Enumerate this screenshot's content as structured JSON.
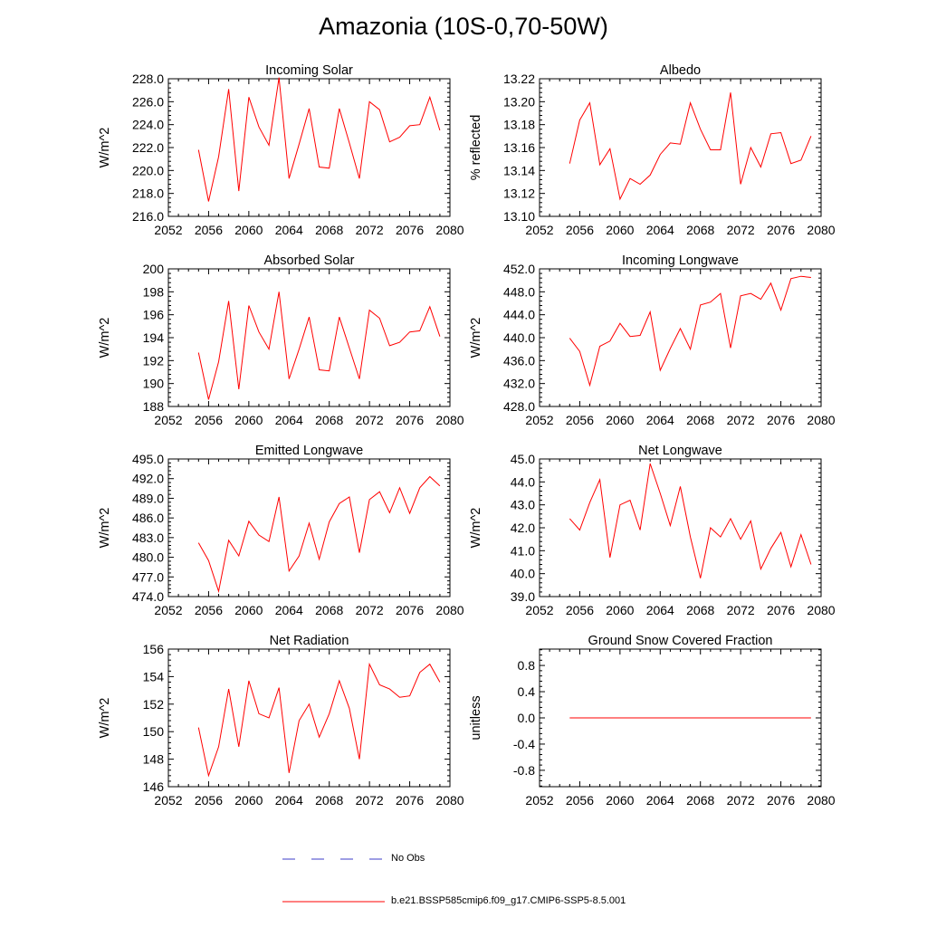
{
  "title": "Amazonia (10S-0,70-50W)",
  "colors": {
    "model_line": "#ff0000",
    "obs_line": "#3c3cc8",
    "frame": "#000000"
  },
  "legend": {
    "obs_label": "No Obs",
    "model_label": "b.e21.BSSP585cmip6.f09_g17.CMIP6-SSP5-8.5.001"
  },
  "chart_data": [
    {
      "type": "line",
      "title": "Incoming Solar",
      "ylabel": "W/m^2",
      "xlim": [
        2052,
        2080
      ],
      "ylim": [
        216,
        228
      ],
      "xticks": [
        2052,
        2056,
        2060,
        2064,
        2068,
        2072,
        2076,
        2080
      ],
      "xtick_labels": [
        "2052",
        "2056",
        "2060",
        "2064",
        "2068",
        "2072",
        "2076",
        "2080"
      ],
      "yticks": [
        216,
        218,
        220,
        222,
        224,
        226,
        228
      ],
      "ytick_labels": [
        "216.0",
        "218.0",
        "220.0",
        "222.0",
        "224.0",
        "226.0",
        "228.0"
      ],
      "x": [
        2055,
        2056,
        2057,
        2058,
        2059,
        2060,
        2061,
        2062,
        2063,
        2064,
        2065,
        2066,
        2067,
        2068,
        2069,
        2070,
        2071,
        2072,
        2073,
        2074,
        2075,
        2076,
        2077,
        2078,
        2079
      ],
      "values": [
        221.8,
        217.3,
        221.2,
        227.1,
        218.2,
        226.4,
        223.8,
        222.2,
        228.1,
        219.3,
        222.3,
        225.4,
        220.3,
        220.2,
        225.4,
        222.4,
        219.3,
        226.0,
        225.3,
        222.5,
        222.9,
        223.9,
        224.0,
        226.4,
        223.5
      ]
    },
    {
      "type": "line",
      "title": "Albedo",
      "ylabel": "% reflected",
      "xlim": [
        2052,
        2080
      ],
      "ylim": [
        13.1,
        13.22
      ],
      "xticks": [
        2052,
        2056,
        2060,
        2064,
        2068,
        2072,
        2076,
        2080
      ],
      "xtick_labels": [
        "2052",
        "2056",
        "2060",
        "2064",
        "2068",
        "2072",
        "2076",
        "2080"
      ],
      "yticks": [
        13.1,
        13.12,
        13.14,
        13.16,
        13.18,
        13.2,
        13.22
      ],
      "ytick_labels": [
        "13.10",
        "13.12",
        "13.14",
        "13.16",
        "13.18",
        "13.20",
        "13.22"
      ],
      "x": [
        2055,
        2056,
        2057,
        2058,
        2059,
        2060,
        2061,
        2062,
        2063,
        2064,
        2065,
        2066,
        2067,
        2068,
        2069,
        2070,
        2071,
        2072,
        2073,
        2074,
        2075,
        2076,
        2077,
        2078,
        2079
      ],
      "values": [
        13.146,
        13.184,
        13.199,
        13.145,
        13.159,
        13.115,
        13.133,
        13.128,
        13.136,
        13.154,
        13.164,
        13.163,
        13.199,
        13.176,
        13.158,
        13.158,
        13.208,
        13.128,
        13.16,
        13.143,
        13.172,
        13.173,
        13.146,
        13.149,
        13.17
      ]
    },
    {
      "type": "line",
      "title": "Absorbed Solar",
      "ylabel": "W/m^2",
      "xlim": [
        2052,
        2080
      ],
      "ylim": [
        188,
        200
      ],
      "xticks": [
        2052,
        2056,
        2060,
        2064,
        2068,
        2072,
        2076,
        2080
      ],
      "xtick_labels": [
        "2052",
        "2056",
        "2060",
        "2064",
        "2068",
        "2072",
        "2076",
        "2080"
      ],
      "yticks": [
        188,
        190,
        192,
        194,
        196,
        198,
        200
      ],
      "ytick_labels": [
        "188",
        "190",
        "192",
        "194",
        "196",
        "198",
        "200"
      ],
      "x": [
        2055,
        2056,
        2057,
        2058,
        2059,
        2060,
        2061,
        2062,
        2063,
        2064,
        2065,
        2066,
        2067,
        2068,
        2069,
        2070,
        2071,
        2072,
        2073,
        2074,
        2075,
        2076,
        2077,
        2078,
        2079
      ],
      "values": [
        192.7,
        188.6,
        191.9,
        197.2,
        189.5,
        196.8,
        194.5,
        193.0,
        198.0,
        190.4,
        193.0,
        195.8,
        191.2,
        191.1,
        195.8,
        193.1,
        190.4,
        196.4,
        195.7,
        193.3,
        193.6,
        194.5,
        194.6,
        196.7,
        194.1
      ]
    },
    {
      "type": "line",
      "title": "Incoming Longwave",
      "ylabel": "W/m^2",
      "xlim": [
        2052,
        2080
      ],
      "ylim": [
        428,
        452
      ],
      "xticks": [
        2052,
        2056,
        2060,
        2064,
        2068,
        2072,
        2076,
        2080
      ],
      "xtick_labels": [
        "2052",
        "2056",
        "2060",
        "2064",
        "2068",
        "2072",
        "2076",
        "2080"
      ],
      "yticks": [
        428,
        432,
        436,
        440,
        444,
        448,
        452
      ],
      "ytick_labels": [
        "428.0",
        "432.0",
        "436.0",
        "440.0",
        "444.0",
        "448.0",
        "452.0"
      ],
      "x": [
        2055,
        2056,
        2057,
        2058,
        2059,
        2060,
        2061,
        2062,
        2063,
        2064,
        2065,
        2066,
        2067,
        2068,
        2069,
        2070,
        2071,
        2072,
        2073,
        2074,
        2075,
        2076,
        2077,
        2078,
        2079
      ],
      "values": [
        439.9,
        437.6,
        431.7,
        438.5,
        439.4,
        442.5,
        440.2,
        440.4,
        444.5,
        434.3,
        438.1,
        441.6,
        438.0,
        445.7,
        446.2,
        447.7,
        438.2,
        447.3,
        447.7,
        446.7,
        449.5,
        444.8,
        450.3,
        450.7,
        450.5
      ]
    },
    {
      "type": "line",
      "title": "Emitted Longwave",
      "ylabel": "W/m^2",
      "xlim": [
        2052,
        2080
      ],
      "ylim": [
        474,
        495
      ],
      "xticks": [
        2052,
        2056,
        2060,
        2064,
        2068,
        2072,
        2076,
        2080
      ],
      "xtick_labels": [
        "2052",
        "2056",
        "2060",
        "2064",
        "2068",
        "2072",
        "2076",
        "2080"
      ],
      "yticks": [
        474,
        477,
        480,
        483,
        486,
        489,
        492,
        495
      ],
      "ytick_labels": [
        "474.0",
        "477.0",
        "480.0",
        "483.0",
        "486.0",
        "489.0",
        "492.0",
        "495.0"
      ],
      "x": [
        2055,
        2056,
        2057,
        2058,
        2059,
        2060,
        2061,
        2062,
        2063,
        2064,
        2065,
        2066,
        2067,
        2068,
        2069,
        2070,
        2071,
        2072,
        2073,
        2074,
        2075,
        2076,
        2077,
        2078,
        2079
      ],
      "values": [
        482.2,
        479.5,
        474.8,
        482.6,
        480.2,
        485.5,
        483.4,
        482.4,
        489.2,
        477.9,
        480.2,
        485.2,
        479.7,
        485.4,
        488.2,
        489.2,
        480.7,
        488.8,
        490.0,
        486.8,
        490.6,
        486.7,
        490.6,
        492.3,
        490.9
      ]
    },
    {
      "type": "line",
      "title": "Net Longwave",
      "ylabel": "W/m^2",
      "xlim": [
        2052,
        2080
      ],
      "ylim": [
        39,
        45
      ],
      "xticks": [
        2052,
        2056,
        2060,
        2064,
        2068,
        2072,
        2076,
        2080
      ],
      "xtick_labels": [
        "2052",
        "2056",
        "2060",
        "2064",
        "2068",
        "2072",
        "2076",
        "2080"
      ],
      "yticks": [
        39,
        40,
        41,
        42,
        43,
        44,
        45
      ],
      "ytick_labels": [
        "39.0",
        "40.0",
        "41.0",
        "42.0",
        "43.0",
        "44.0",
        "45.0"
      ],
      "x": [
        2055,
        2056,
        2057,
        2058,
        2059,
        2060,
        2061,
        2062,
        2063,
        2064,
        2065,
        2066,
        2067,
        2068,
        2069,
        2070,
        2071,
        2072,
        2073,
        2074,
        2075,
        2076,
        2077,
        2078,
        2079
      ],
      "values": [
        42.4,
        41.9,
        43.1,
        44.1,
        40.7,
        43.0,
        43.2,
        41.9,
        44.8,
        43.5,
        42.1,
        43.8,
        41.6,
        39.8,
        42.0,
        41.6,
        42.4,
        41.5,
        42.3,
        40.2,
        41.1,
        41.8,
        40.3,
        41.7,
        40.4
      ]
    },
    {
      "type": "line",
      "title": "Net Radiation",
      "ylabel": "W/m^2",
      "xlim": [
        2052,
        2080
      ],
      "ylim": [
        146,
        156
      ],
      "xticks": [
        2052,
        2056,
        2060,
        2064,
        2068,
        2072,
        2076,
        2080
      ],
      "xtick_labels": [
        "2052",
        "2056",
        "2060",
        "2064",
        "2068",
        "2072",
        "2076",
        "2080"
      ],
      "yticks": [
        146,
        148,
        150,
        152,
        154,
        156
      ],
      "ytick_labels": [
        "146",
        "148",
        "150",
        "152",
        "154",
        "156"
      ],
      "x": [
        2055,
        2056,
        2057,
        2058,
        2059,
        2060,
        2061,
        2062,
        2063,
        2064,
        2065,
        2066,
        2067,
        2068,
        2069,
        2070,
        2071,
        2072,
        2073,
        2074,
        2075,
        2076,
        2077,
        2078,
        2079
      ],
      "values": [
        150.3,
        146.8,
        148.9,
        153.1,
        148.9,
        153.7,
        151.3,
        151.0,
        153.2,
        147.0,
        150.8,
        152.0,
        149.6,
        151.3,
        153.7,
        151.7,
        148.0,
        154.9,
        153.4,
        153.1,
        152.5,
        152.6,
        154.3,
        154.9,
        153.6
      ]
    },
    {
      "type": "line",
      "title": "Ground Snow Covered Fraction",
      "ylabel": "unitless",
      "xlim": [
        2052,
        2080
      ],
      "ylim": [
        -1.05,
        1.05
      ],
      "xticks": [
        2052,
        2056,
        2060,
        2064,
        2068,
        2072,
        2076,
        2080
      ],
      "xtick_labels": [
        "2052",
        "2056",
        "2060",
        "2064",
        "2068",
        "2072",
        "2076",
        "2080"
      ],
      "yticks": [
        -0.8,
        -0.4,
        0.0,
        0.4,
        0.8
      ],
      "ytick_labels": [
        "-0.8",
        "-0.4",
        "0.0",
        "0.4",
        "0.8"
      ],
      "x": [
        2055,
        2056,
        2057,
        2058,
        2059,
        2060,
        2061,
        2062,
        2063,
        2064,
        2065,
        2066,
        2067,
        2068,
        2069,
        2070,
        2071,
        2072,
        2073,
        2074,
        2075,
        2076,
        2077,
        2078,
        2079
      ],
      "values": [
        0,
        0,
        0,
        0,
        0,
        0,
        0,
        0,
        0,
        0,
        0,
        0,
        0,
        0,
        0,
        0,
        0,
        0,
        0,
        0,
        0,
        0,
        0,
        0,
        0
      ]
    }
  ]
}
